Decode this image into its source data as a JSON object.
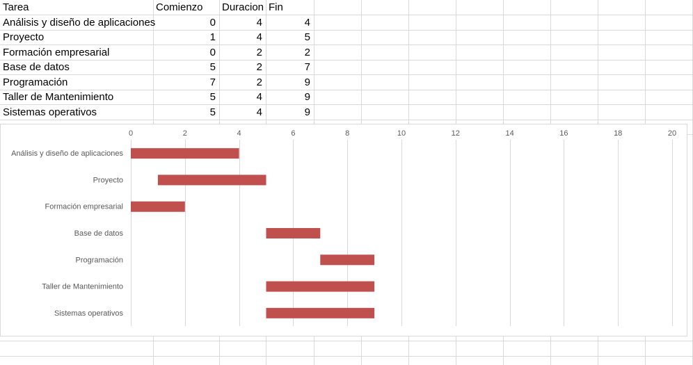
{
  "table": {
    "headers": [
      "Tarea",
      "Comienzo",
      "Duracion",
      "Fin"
    ],
    "rows": [
      {
        "tarea": "Análisis y diseño de aplicaciones",
        "comienzo": "0",
        "duracion": "4",
        "fin": "4"
      },
      {
        "tarea": "Proyecto",
        "comienzo": "1",
        "duracion": "4",
        "fin": "5"
      },
      {
        "tarea": "Formación empresarial",
        "comienzo": "0",
        "duracion": "2",
        "fin": "2"
      },
      {
        "tarea": "Base de datos",
        "comienzo": "5",
        "duracion": "2",
        "fin": "7"
      },
      {
        "tarea": "Programación",
        "comienzo": "7",
        "duracion": "2",
        "fin": "9"
      },
      {
        "tarea": "Taller de Mantenimiento",
        "comienzo": "5",
        "duracion": "4",
        "fin": "9"
      },
      {
        "tarea": "Sistemas operativos",
        "comienzo": "5",
        "duracion": "4",
        "fin": "9"
      }
    ]
  },
  "chart_data": {
    "type": "bar",
    "orientation": "horizontal-stacked-gantt",
    "categories": [
      "Análisis y diseño de aplicaciones",
      "Proyecto",
      "Formación empresarial",
      "Base de datos",
      "Programación",
      "Taller de Mantenimiento",
      "Sistemas operativos"
    ],
    "series": [
      {
        "values": [
          0,
          1,
          0,
          5,
          7,
          5,
          5
        ],
        "visible": false
      },
      {
        "values": [
          4,
          4,
          2,
          2,
          2,
          4,
          4
        ],
        "color": "#c0504d"
      }
    ],
    "xlim": [
      0,
      20
    ],
    "xticks": [
      0,
      2,
      4,
      6,
      8,
      10,
      12,
      14,
      16,
      18,
      20
    ],
    "x_axis_position": "top",
    "grid": "vertical",
    "legend": "none",
    "bar_color": "#c0504d",
    "grid_color": "#d9d9d9",
    "label_color": "#595959"
  }
}
